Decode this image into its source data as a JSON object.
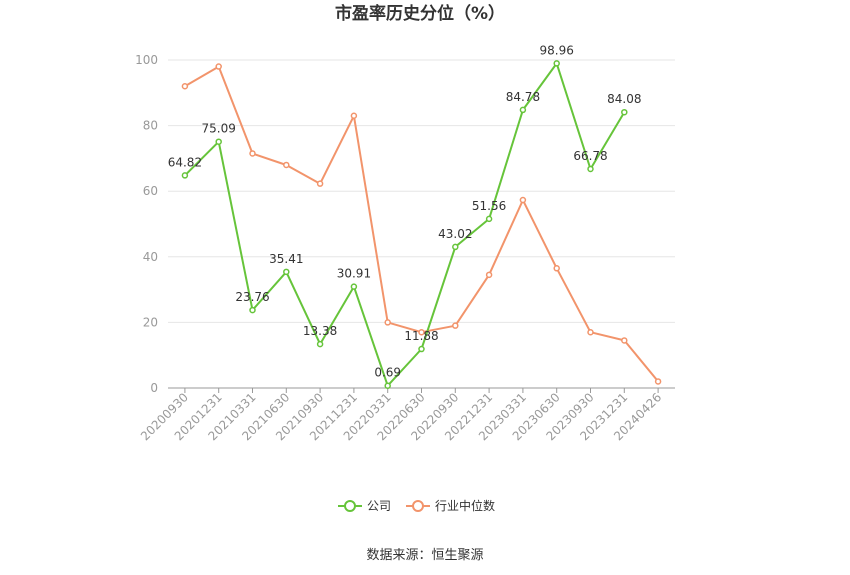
{
  "chart_data": {
    "type": "line",
    "title": "市盈率历史分位（%）",
    "xlabel": "",
    "ylabel": "",
    "ylim": [
      0,
      100
    ],
    "yticks": [
      0,
      20,
      40,
      60,
      80,
      100
    ],
    "grid": true,
    "legend_position": "bottom",
    "categories": [
      "20200930",
      "20201231",
      "20210331",
      "20210630",
      "20210930",
      "20211231",
      "20220331",
      "20220630",
      "20220930",
      "20221231",
      "20230331",
      "20230630",
      "20230930",
      "20231231",
      "20240426"
    ],
    "series": [
      {
        "name": "公司",
        "color": "#66c43a",
        "values": [
          64.82,
          75.09,
          23.76,
          35.41,
          13.38,
          30.91,
          0.69,
          11.88,
          43.02,
          51.56,
          84.78,
          98.96,
          66.78,
          84.08,
          null
        ],
        "labels": [
          "64.82",
          "75.09",
          "23.76",
          "35.41",
          "13.38",
          "30.91",
          "0.69",
          "11.88",
          "43.02",
          "51.56",
          "84.78",
          "98.96",
          "66.78",
          "84.08",
          null
        ]
      },
      {
        "name": "行业中位数",
        "color": "#f2946b",
        "values": [
          92,
          98,
          71.5,
          68,
          62.3,
          83,
          20,
          17,
          19,
          34.5,
          57.3,
          36.5,
          17,
          14.5,
          2
        ]
      }
    ],
    "source": "数据来源：恒生聚源"
  }
}
